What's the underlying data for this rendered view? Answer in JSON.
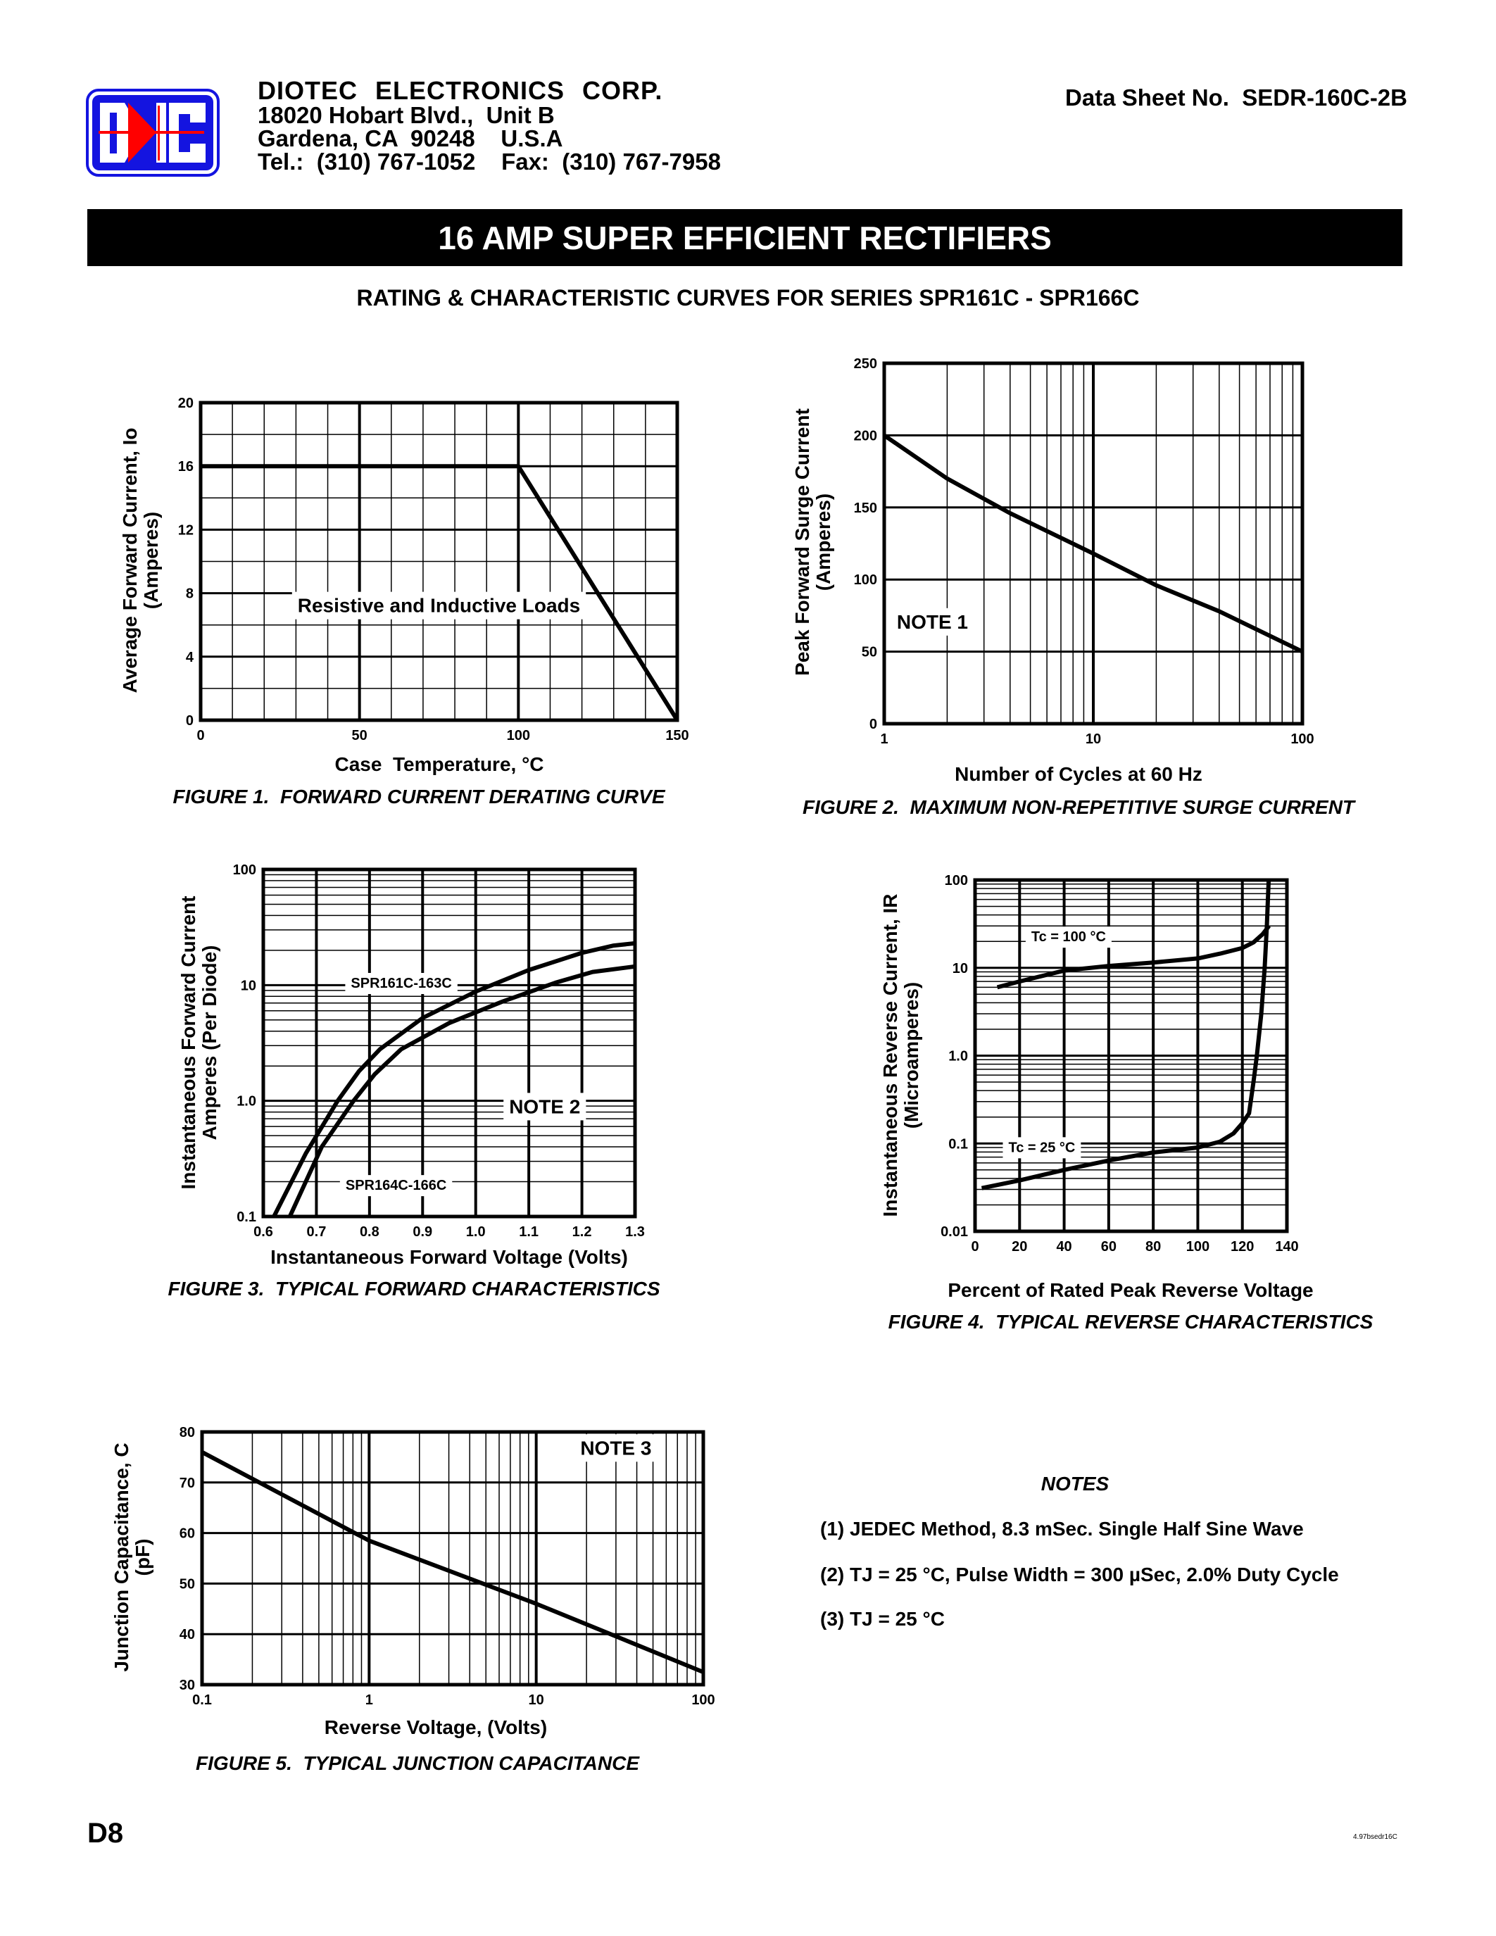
{
  "header": {
    "logo_text": "DIC",
    "logo_colors": {
      "blue": "#1414e0",
      "red": "#ff0000"
    },
    "company": "DIOTEC ELECTRONICS CORP.",
    "address1": "18020 Hobart Blvd.,  Unit B",
    "address2": "Gardena, CA  90248    U.S.A",
    "phone": "Tel.:  (310) 767-1052    Fax:  (310) 767-7958",
    "datasheet": "Data Sheet No.  SEDR-160C-2B"
  },
  "banner": "16 AMP SUPER EFFICIENT RECTIFIERS",
  "subtitle": "RATING & CHARACTERISTIC CURVES FOR SERIES SPR161C - SPR166C",
  "chart_data": [
    {
      "type": "line",
      "caption": "FIGURE 1.  FORWARD CURRENT DERATING CURVE",
      "xlabel": "Case  Temperature, °C",
      "ylabel": [
        "Average Forward Current, Io",
        "(Amperes)"
      ],
      "xscale": "linear",
      "yscale": "linear",
      "xlim": [
        0,
        150
      ],
      "ylim": [
        0,
        20
      ],
      "x_ticks": [
        0,
        50,
        100,
        150
      ],
      "x_tick_labels": [
        "0",
        "50",
        "100",
        "150"
      ],
      "y_ticks": [
        0,
        4,
        8,
        12,
        16,
        20
      ],
      "y_tick_labels": [
        "0",
        "4",
        "8",
        "12",
        "16",
        "20"
      ],
      "x_major_grid": [
        50,
        100
      ],
      "x_minor_grid": [
        10,
        20,
        30,
        40,
        60,
        70,
        80,
        90,
        110,
        120,
        130,
        140
      ],
      "y_major_grid": [
        4,
        8,
        12,
        16
      ],
      "y_minor_grid": [
        2,
        6,
        10,
        14,
        18
      ],
      "grid": true,
      "series": [
        {
          "points": [
            [
              0,
              16
            ],
            [
              100,
              16
            ],
            [
              150,
              0
            ]
          ]
        }
      ],
      "annotations": [
        {
          "text": "Resistive and Inductive Loads",
          "x": 75,
          "y": 6.8
        }
      ]
    },
    {
      "type": "line",
      "caption": "FIGURE 2.  MAXIMUM NON-REPETITIVE SURGE CURRENT",
      "xlabel": "Number of Cycles at 60 Hz",
      "ylabel": [
        "Peak Forward Surge Current",
        "(Amperes)"
      ],
      "xscale": "log",
      "yscale": "linear",
      "xlim": [
        1,
        100
      ],
      "ylim": [
        0,
        250
      ],
      "x_ticks": [
        1,
        10,
        100
      ],
      "x_tick_labels": [
        "1",
        "10",
        "100"
      ],
      "y_ticks": [
        0,
        50,
        100,
        150,
        200,
        250
      ],
      "y_tick_labels": [
        "0",
        "50",
        "100",
        "150",
        "200",
        "250"
      ],
      "x_major_grid": [
        10
      ],
      "x_minor_grid": "log",
      "y_major_grid": [
        50,
        100,
        150,
        200
      ],
      "y_minor_grid": [],
      "grid": true,
      "series": [
        {
          "points": [
            [
              1,
              200
            ],
            [
              2,
              170
            ],
            [
              4,
              146
            ],
            [
              10,
              118
            ],
            [
              20,
              96
            ],
            [
              40,
              78
            ],
            [
              100,
              50
            ]
          ]
        }
      ],
      "annotations": [
        {
          "text": "NOTE 1",
          "x": 1.7,
          "y": 66
        }
      ]
    },
    {
      "type": "line",
      "caption": "FIGURE 3.  TYPICAL FORWARD CHARACTERISTICS",
      "xlabel": "Instantaneous Forward Voltage (Volts)",
      "ylabel": [
        "Instantaneous Forward Current",
        "Amperes (Per Diode)"
      ],
      "xscale": "linear",
      "yscale": "log",
      "xlim": [
        0.6,
        1.3
      ],
      "ylim": [
        0.1,
        100
      ],
      "x_ticks": [
        0.6,
        0.7,
        0.8,
        0.9,
        1.0,
        1.1,
        1.2,
        1.3
      ],
      "x_tick_labels": [
        "0.6",
        "0.7",
        "0.8",
        "0.9",
        "1.0",
        "1.1",
        "1.2",
        "1.3"
      ],
      "y_ticks": [
        0.1,
        1,
        10,
        100
      ],
      "y_tick_labels": [
        "0.1",
        "1.0",
        "10",
        "100"
      ],
      "x_major_grid": [
        0.7,
        0.8,
        0.9,
        1.0,
        1.1,
        1.2
      ],
      "x_minor_grid": [],
      "y_major_grid": [
        1,
        10
      ],
      "y_minor_grid": "log",
      "grid": true,
      "series": [
        {
          "name": "SPR161C-163C",
          "points": [
            [
              0.62,
              0.1
            ],
            [
              0.68,
              0.35
            ],
            [
              0.74,
              1.0
            ],
            [
              0.78,
              1.8
            ],
            [
              0.82,
              2.8
            ],
            [
              0.9,
              5.2
            ],
            [
              1.0,
              8.8
            ],
            [
              1.1,
              13.5
            ],
            [
              1.2,
              19
            ],
            [
              1.26,
              22
            ],
            [
              1.3,
              23
            ]
          ]
        },
        {
          "name": "SPR164C-166C",
          "points": [
            [
              0.65,
              0.1
            ],
            [
              0.71,
              0.4
            ],
            [
              0.77,
              1.0
            ],
            [
              0.81,
              1.7
            ],
            [
              0.86,
              2.8
            ],
            [
              0.95,
              4.7
            ],
            [
              1.05,
              7.2
            ],
            [
              1.15,
              10.5
            ],
            [
              1.22,
              13
            ],
            [
              1.3,
              14.5
            ]
          ]
        }
      ],
      "annotations": [
        {
          "text": "SPR161C-163C",
          "x": 0.86,
          "y": 9.5
        },
        {
          "text": "NOTE 2",
          "x": 1.13,
          "y": 0.78
        },
        {
          "text": "SPR164C-166C",
          "x": 0.85,
          "y": 0.17
        }
      ]
    },
    {
      "type": "line",
      "caption": "FIGURE 4.  TYPICAL REVERSE CHARACTERISTICS",
      "xlabel": "Percent of Rated Peak Reverse Voltage",
      "ylabel": [
        "Instantaneous Reverse Current, IR",
        "(Microamperes)"
      ],
      "xscale": "linear",
      "yscale": "log",
      "xlim": [
        0,
        140
      ],
      "ylim": [
        0.01,
        100
      ],
      "x_ticks": [
        0,
        20,
        40,
        60,
        80,
        100,
        120,
        140
      ],
      "x_tick_labels": [
        "0",
        "20",
        "40",
        "60",
        "80",
        "100",
        "120",
        "140"
      ],
      "y_ticks": [
        0.01,
        0.1,
        1,
        10,
        100
      ],
      "y_tick_labels": [
        "0.01",
        "0.1",
        "1.0",
        "10",
        "100"
      ],
      "x_major_grid": [
        20,
        40,
        60,
        80,
        100,
        120
      ],
      "x_minor_grid": [],
      "y_major_grid": [
        0.1,
        1,
        10
      ],
      "y_minor_grid": "log",
      "grid": true,
      "series": [
        {
          "name": "Tc = 100 °C",
          "points": [
            [
              10,
              6
            ],
            [
              20,
              7
            ],
            [
              40,
              9.3
            ],
            [
              60,
              10.5
            ],
            [
              80,
              11.5
            ],
            [
              100,
              12.8
            ],
            [
              110,
              14.5
            ],
            [
              120,
              16.8
            ],
            [
              125,
              19.5
            ],
            [
              129,
              24
            ],
            [
              132,
              30
            ]
          ]
        },
        {
          "name": "Tc = 25 °C",
          "points": [
            [
              3,
              0.031
            ],
            [
              20,
              0.038
            ],
            [
              40,
              0.05
            ],
            [
              60,
              0.064
            ],
            [
              80,
              0.079
            ],
            [
              100,
              0.09
            ],
            [
              110,
              0.105
            ],
            [
              116,
              0.13
            ],
            [
              120,
              0.17
            ],
            [
              123,
              0.22
            ],
            [
              125,
              0.5
            ],
            [
              126.5,
              1.0
            ],
            [
              128.5,
              3
            ],
            [
              130,
              10
            ],
            [
              131,
              30
            ],
            [
              131.8,
              100
            ]
          ]
        }
      ],
      "annotations": [
        {
          "text": "Tc = 100 °C",
          "x": 42,
          "y": 20
        },
        {
          "text": "Tc = 25 °C",
          "x": 30,
          "y": 0.08
        }
      ]
    },
    {
      "type": "line",
      "caption": "FIGURE 5.  TYPICAL JUNCTION CAPACITANCE",
      "xlabel": "Reverse Voltage, (Volts)",
      "ylabel": [
        "Junction Capacitance, C",
        "(pF)"
      ],
      "xscale": "log",
      "yscale": "linear",
      "xlim": [
        0.1,
        100
      ],
      "ylim": [
        30,
        80
      ],
      "x_ticks": [
        0.1,
        1,
        10,
        100
      ],
      "x_tick_labels": [
        "0.1",
        "1",
        "10",
        "100"
      ],
      "y_ticks": [
        30,
        40,
        50,
        60,
        70,
        80
      ],
      "y_tick_labels": [
        "30",
        "40",
        "50",
        "60",
        "70",
        "80"
      ],
      "x_major_grid": [
        1,
        10
      ],
      "x_minor_grid": "log",
      "y_major_grid": [
        40,
        50,
        60,
        70
      ],
      "y_minor_grid": [],
      "grid": true,
      "series": [
        {
          "points": [
            [
              0.1,
              76
            ],
            [
              1,
              58.5
            ],
            [
              10,
              46
            ],
            [
              100,
              32.5
            ]
          ]
        }
      ],
      "annotations": [
        {
          "text": "NOTE 3",
          "x": 30,
          "y": 75.5
        }
      ]
    }
  ],
  "notes": {
    "heading": "NOTES",
    "items": [
      "(1) JEDEC Method, 8.3 mSec. Single Half Sine Wave",
      "(2) TJ = 25 °C, Pulse Width = 300 µSec, 2.0% Duty Cycle",
      "(3) TJ = 25 °C"
    ]
  },
  "footer": {
    "page": "D8",
    "code": "4.97bsedr16C"
  }
}
